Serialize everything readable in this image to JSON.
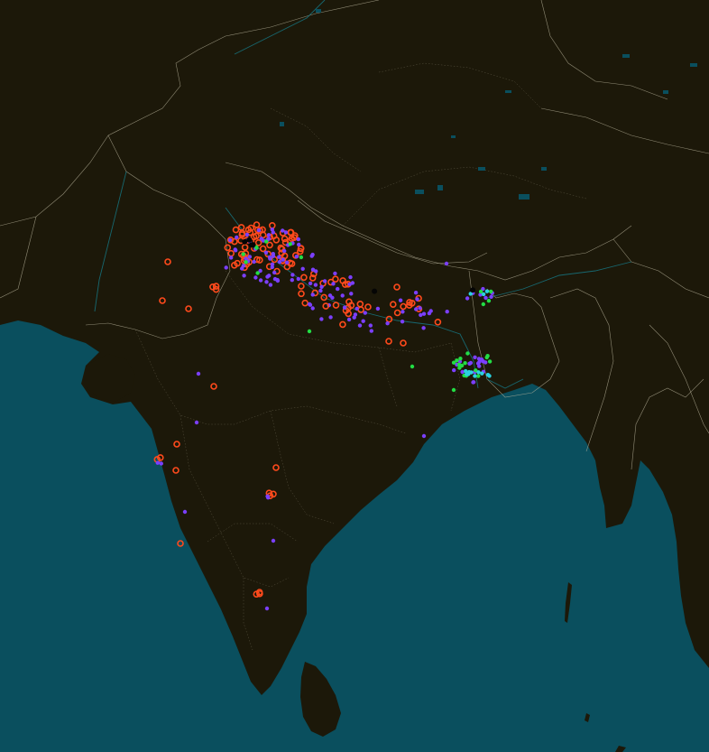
{
  "map": {
    "colors": {
      "land": "#1c1809",
      "sea": "#0a4f5e",
      "border": "#b8b39b",
      "border_dim": "#6f6a55",
      "river": "#167c8a",
      "lake": "#0a4f5e"
    },
    "legend_shown": false,
    "marker_series": [
      {
        "key": "red",
        "color": "#ff4a1c",
        "style": "ring"
      },
      {
        "key": "purple",
        "color": "#7b3fff",
        "style": "dot"
      },
      {
        "key": "green",
        "color": "#22dd44",
        "style": "dot"
      },
      {
        "key": "cyan",
        "color": "#2ad1e0",
        "style": "dot"
      },
      {
        "key": "black",
        "color": "#050505",
        "style": "dot"
      }
    ]
  }
}
